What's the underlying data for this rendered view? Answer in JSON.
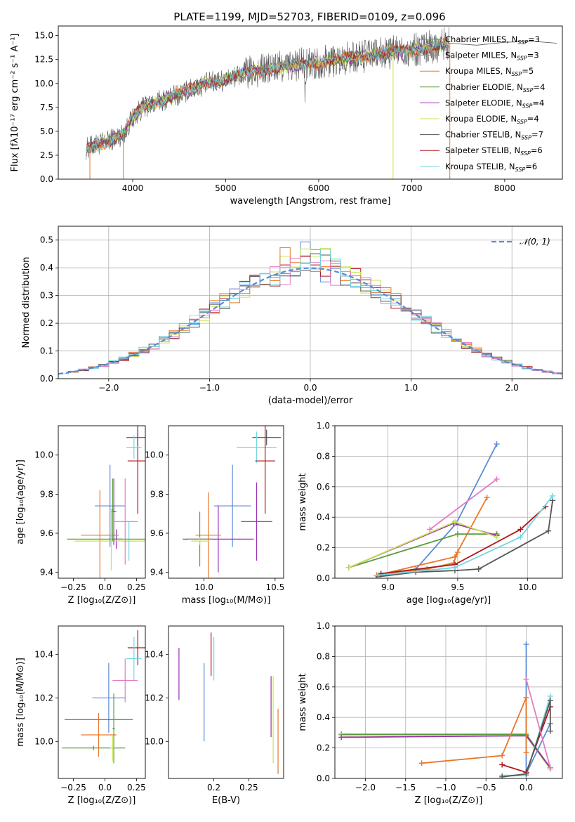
{
  "figure": {
    "title": "PLATE=1199, MJD=52703, FIBERID=0109, z=0.096"
  },
  "colors": {
    "Chabrier MILES": "#5b8bd6",
    "Salpeter MILES": "#e8792a",
    "Kroupa MILES": "#e8792a",
    "Chabrier ELODIE": "#5a9a3c",
    "Salpeter ELODIE": "#9b2fb2",
    "Kroupa ELODIE": "#c9e356",
    "Chabrier STELIB": "#555555",
    "Salpeter STELIB": "#b0161a",
    "Kroupa STELIB": "#72d6e0",
    "ssp_crosses": [
      "#b0161a",
      "#e37bc3",
      "#72d6e0",
      "#555555",
      "#9b2fb2",
      "#5b8bd6",
      "#e8792a",
      "#5a9a3c",
      "#c9e356"
    ],
    "gaussian": "#5b8bd6"
  },
  "chart_data": [
    {
      "id": "spectrum",
      "type": "line",
      "title": "PLATE=1199, MJD=52703, FIBERID=0109, z=0.096",
      "xlabel": "wavelength [Angstrom, rest frame]",
      "ylabel": "Flux [fλ10⁻¹⁷ erg cm⁻² s⁻¹ A⁻¹]",
      "xlim": [
        3200,
        8620
      ],
      "ylim": [
        0,
        16
      ],
      "xticks": [
        4000,
        5000,
        6000,
        7000,
        8000
      ],
      "yticks": [
        0.0,
        2.5,
        5.0,
        7.5,
        10.0,
        12.5,
        15.0
      ],
      "legend_position": "upper-right",
      "legend": [
        "Chabrier MILES, N_SSP=3",
        "Salpeter MILES, N_SSP=3",
        "Kroupa MILES, N_SSP=5",
        "Chabrier ELODIE, N_SSP=4",
        "Salpeter ELODIE, N_SSP=4",
        "Kroupa ELODIE, N_SSP=4",
        "Chabrier STELIB, N_SSP=7",
        "Salpeter STELIB, N_SSP=6",
        "Kroupa STELIB, N_SSP=6"
      ],
      "legend_keys": [
        "Chabrier MILES",
        "Salpeter MILES",
        "Kroupa MILES",
        "Chabrier ELODIE",
        "Salpeter ELODIE",
        "Kroupa ELODIE",
        "Chabrier STELIB",
        "Salpeter STELIB",
        "Kroupa STELIB"
      ],
      "continuum": {
        "wavelength": [
          3500,
          3600,
          3700,
          3800,
          3900,
          4000,
          4100,
          4300,
          4500,
          4800,
          5000,
          5200,
          5500,
          5800,
          6000,
          6300,
          6600,
          7000,
          7200,
          7400
        ],
        "flux": [
          3.2,
          3.6,
          3.8,
          4.3,
          4.7,
          6.4,
          7.4,
          8.2,
          8.9,
          10.0,
          10.4,
          11.0,
          11.6,
          12.0,
          12.2,
          12.6,
          13.0,
          13.5,
          13.8,
          14.2
        ]
      },
      "observed_extension": {
        "wavelength": [
          7400,
          7700,
          8000,
          8300,
          8560
        ],
        "flux": [
          14.2,
          14.0,
          14.3,
          14.4,
          14.2
        ]
      }
    },
    {
      "id": "residuals",
      "type": "histogram",
      "xlabel": "(data-model)/error",
      "ylabel": "Normed distribution",
      "xlim": [
        -2.5,
        2.5
      ],
      "ylim": [
        0,
        0.55
      ],
      "xticks": [
        -2,
        -1,
        0,
        1,
        2
      ],
      "yticks": [
        0.0,
        0.1,
        0.2,
        0.3,
        0.4,
        0.5
      ],
      "grid": true,
      "bin_width": 0.1,
      "legend": [
        "𝒩(0, 1)"
      ],
      "legend_position": "upper-right"
    },
    {
      "id": "age_vs_Z",
      "type": "errorbar",
      "xlabel": "Z [log₁₀(Z/Z⊙)]",
      "ylabel": "age  [log₁₀(age/yr)]",
      "xlim": [
        -0.37,
        0.32
      ],
      "ylim": [
        9.37,
        10.15
      ],
      "xticks": [
        -0.25,
        0.0,
        0.25
      ],
      "yticks": [
        9.4,
        9.6,
        9.8,
        10.0
      ],
      "points": [
        {
          "series": "Salpeter STELIB",
          "x": 0.26,
          "y": 9.97,
          "xerr": 0.08,
          "yerr": 0.27
        },
        {
          "series": "Chabrier STELIB",
          "x": 0.26,
          "y": 10.09,
          "xerr": 0.09,
          "yerr": 0.04
        },
        {
          "series": "Kroupa STELIB",
          "x": 0.23,
          "y": 10.04,
          "xerr": 0.06,
          "yerr": 0.06
        },
        {
          "series": "Kroupa STELIB",
          "x": 0.19,
          "y": 9.56,
          "xerr": 0.05,
          "yerr": 0.1
        },
        {
          "series": "Salpeter ELODIE",
          "x": 0.09,
          "y": 9.57,
          "xerr": 0.05,
          "yerr": 0.05
        },
        {
          "series": "Chabrier MILES",
          "x": 0.04,
          "y": 9.74,
          "xerr": 0.12,
          "yerr": 0.21
        },
        {
          "series": "Salpeter MILES",
          "x": -0.04,
          "y": 9.59,
          "xerr": 0.15,
          "yerr": 0.23
        },
        {
          "series": "Chabrier ELODIE",
          "x": 0.05,
          "y": 9.57,
          "xerr": 0.35,
          "yerr": 0.02
        },
        {
          "series": "Kroupa ELODIE",
          "x": 0.05,
          "y": 9.56,
          "xerr": 0.29,
          "yerr": 0.15
        },
        {
          "series": "Salpeter ELODIE",
          "x": 0.07,
          "y": 9.71,
          "xerr": 0.02,
          "yerr": 0.17
        },
        {
          "series": "Chabrier ELODIE",
          "x": 0.06,
          "y": 9.72,
          "xerr": 0.01,
          "yerr": 0.16
        },
        {
          "series": "Salpeter ELODIE",
          "x": 0.16,
          "y": 9.66,
          "xerr": 0.1,
          "yerr": 0.22
        }
      ]
    },
    {
      "id": "age_vs_mass",
      "type": "errorbar",
      "xlabel": "mass [log₁₀(M/M⊙)]",
      "ylabel": "",
      "xlim": [
        9.75,
        10.56
      ],
      "ylim": [
        9.37,
        10.15
      ],
      "xticks": [
        10.0,
        10.5
      ],
      "yticks": [
        9.4,
        9.6,
        9.8,
        10.0
      ],
      "points": [
        {
          "series": "Chabrier STELIB",
          "x": 10.44,
          "y": 10.09,
          "xerr": 0.1,
          "yerr": 0.04
        },
        {
          "series": "Kroupa STELIB",
          "x": 10.37,
          "y": 10.04,
          "xerr": 0.14,
          "yerr": 0.08
        },
        {
          "series": "Salpeter STELIB",
          "x": 10.43,
          "y": 9.97,
          "xerr": 0.07,
          "yerr": 0.27
        },
        {
          "series": "Salpeter ELODIE",
          "x": 10.37,
          "y": 9.66,
          "xerr": 0.11,
          "yerr": 0.2
        },
        {
          "series": "Chabrier MILES",
          "x": 10.2,
          "y": 9.74,
          "xerr": 0.13,
          "yerr": 0.21
        },
        {
          "series": "Salpeter ELODIE",
          "x": 10.1,
          "y": 9.57,
          "xerr": 0.25,
          "yerr": 0.17
        },
        {
          "series": "Salpeter MILES",
          "x": 10.03,
          "y": 9.59,
          "xerr": 0.09,
          "yerr": 0.22
        },
        {
          "series": "Chabrier ELODIE",
          "x": 9.97,
          "y": 9.57,
          "xerr": 0.08,
          "yerr": 0.14
        },
        {
          "series": "Kroupa ELODIE",
          "x": 9.97,
          "y": 9.56,
          "xerr": 0.06,
          "yerr": 0.02
        }
      ]
    },
    {
      "id": "weight_vs_age",
      "type": "line",
      "xlabel": "age  [log₁₀(age/yr)]",
      "ylabel": "mass weight",
      "xlim": [
        8.62,
        10.25
      ],
      "ylim": [
        0,
        1
      ],
      "xticks": [
        9.0,
        9.5,
        10.0
      ],
      "yticks": [
        0.0,
        0.2,
        0.4,
        0.6,
        0.8,
        1.0
      ],
      "grid": true,
      "series": [
        {
          "key": "Chabrier MILES",
          "x": [
            8.92,
            9.2,
            9.49,
            9.78
          ],
          "y": [
            0.02,
            0.06,
            0.36,
            0.88
          ]
        },
        {
          "key": "Salpeter MILES",
          "x": [
            8.92,
            9.48,
            9.71
          ],
          "y": [
            0.02,
            0.14,
            0.53
          ]
        },
        {
          "key": "Kroupa MILES",
          "x": [
            8.95,
            9.28,
            9.47,
            9.5
          ],
          "y": [
            0.03,
            0.06,
            0.1,
            0.17
          ]
        },
        {
          "key": "Chabrier ELODIE",
          "x": [
            8.72,
            9.5,
            9.78
          ],
          "y": [
            0.07,
            0.29,
            0.29
          ]
        },
        {
          "key": "Salpeter ELODIE",
          "x": [
            8.72,
            9.47,
            9.78
          ],
          "y": [
            0.07,
            0.36,
            0.28
          ]
        },
        {
          "key": "Kroupa ELODIE",
          "x": [
            8.72,
            9.48,
            9.78
          ],
          "y": [
            0.07,
            0.37,
            0.27
          ]
        },
        {
          "key": "Chabrier STELIB",
          "x": [
            8.93,
            9.2,
            9.48,
            9.65,
            10.15,
            10.18
          ],
          "y": [
            0.01,
            0.04,
            0.05,
            0.06,
            0.31,
            0.51
          ]
        },
        {
          "key": "Salpeter STELIB",
          "x": [
            8.95,
            9.48,
            9.95,
            10.13
          ],
          "y": [
            0.03,
            0.09,
            0.32,
            0.47
          ]
        },
        {
          "key": "Kroupa STELIB",
          "x": [
            8.93,
            9.48,
            9.95,
            10.18
          ],
          "y": [
            0.02,
            0.07,
            0.27,
            0.54
          ]
        },
        {
          "key": "Salpeter ELODIE",
          "x": [
            9.3,
            9.78
          ],
          "y": [
            0.32,
            0.65
          ],
          "color_override": "#e37bc3"
        }
      ]
    },
    {
      "id": "mass_vs_Z",
      "type": "errorbar",
      "xlabel": "Z [log₁₀(Z/Z⊙)]",
      "ylabel": "mass [log₁₀(M/M⊙)]",
      "xlim": [
        -0.37,
        0.32
      ],
      "ylim": [
        9.83,
        10.53
      ],
      "xticks": [
        -0.25,
        0.0,
        0.25
      ],
      "yticks": [
        10.0,
        10.2,
        10.4
      ],
      "points": [
        {
          "series": "Salpeter STELIB",
          "x": 0.26,
          "y": 10.43,
          "xerr": 0.08,
          "yerr": 0.08
        },
        {
          "series": "Kroupa STELIB",
          "x": 0.23,
          "y": 10.38,
          "xerr": 0.06,
          "yerr": 0.1
        },
        {
          "series": "Salpeter ELODIE",
          "x": 0.16,
          "y": 10.28,
          "xerr": 0.1,
          "yerr": 0.1
        },
        {
          "series": "Chabrier MILES",
          "x": 0.03,
          "y": 10.2,
          "xerr": 0.13,
          "yerr": 0.16
        },
        {
          "series": "Salpeter ELODIE",
          "x": -0.05,
          "y": 10.1,
          "xerr": 0.27,
          "yerr": 0.01
        },
        {
          "series": "Salpeter MILES",
          "x": -0.05,
          "y": 10.03,
          "xerr": 0.14,
          "yerr": 0.1
        },
        {
          "series": "Chabrier ELODIE",
          "x": -0.09,
          "y": 9.97,
          "xerr": 0.25,
          "yerr": 0.01
        },
        {
          "series": "Kroupa ELODIE",
          "x": 0.06,
          "y": 9.97,
          "xerr": 0.02,
          "yerr": 0.06
        },
        {
          "series": "Chabrier ELODIE",
          "x": 0.07,
          "y": 10.06,
          "xerr": 0.01,
          "yerr": 0.16
        }
      ]
    },
    {
      "id": "mass_vs_EBV",
      "type": "errorbar",
      "xlabel": "E(B-V)",
      "ylabel": "",
      "xlim": [
        0.135,
        0.3
      ],
      "ylim": [
        9.83,
        10.53
      ],
      "xticks": [
        0.2,
        0.25
      ],
      "yticks": [
        10.0,
        10.2,
        10.4
      ],
      "points": [
        {
          "series": "Salpeter ELODIE",
          "x": 0.15,
          "y": 10.31,
          "xerr": 0,
          "yerr": 0.12
        },
        {
          "series": "Chabrier MILES",
          "x": 0.186,
          "y": 10.18,
          "xerr": 0,
          "yerr": 0.18
        },
        {
          "series": "Salpeter STELIB",
          "x": 0.196,
          "y": 10.4,
          "xerr": 0,
          "yerr": 0.1
        },
        {
          "series": "Kroupa STELIB",
          "x": 0.2,
          "y": 10.38,
          "xerr": 0,
          "yerr": 0.1
        },
        {
          "series": "Salpeter ELODIE",
          "x": 0.282,
          "y": 10.16,
          "xerr": 0,
          "yerr": 0.14
        },
        {
          "series": "Kroupa ELODIE",
          "x": 0.285,
          "y": 10.1,
          "xerr": 0,
          "yerr": 0.2
        },
        {
          "series": "Salpeter MILES",
          "x": 0.292,
          "y": 10.0,
          "xerr": 0,
          "yerr": 0.15
        }
      ]
    },
    {
      "id": "weight_vs_Z",
      "type": "line",
      "xlabel": "Z [log₁₀(Z/Z⊙)]",
      "ylabel": "mass weight",
      "xlim": [
        -2.38,
        0.45
      ],
      "ylim": [
        0,
        1
      ],
      "xticks": [
        -2.0,
        -1.5,
        -1.0,
        -0.5,
        0.0
      ],
      "yticks": [
        0.0,
        0.2,
        0.4,
        0.6,
        0.8,
        1.0
      ],
      "grid": true,
      "series": [
        {
          "key": "Chabrier ELODIE",
          "x": [
            -2.3,
            0.0,
            0.3
          ],
          "y": [
            0.29,
            0.29,
            0.07
          ]
        },
        {
          "key": "Kroupa ELODIE",
          "x": [
            -2.3,
            0.0,
            0.3
          ],
          "y": [
            0.28,
            0.28,
            0.06
          ]
        },
        {
          "key": "Salpeter ELODIE",
          "x": [
            -2.3,
            0.0,
            0.3
          ],
          "y": [
            0.27,
            0.28,
            0.07
          ]
        },
        {
          "key": "Chabrier MILES",
          "x": [
            0.0,
            0.0,
            0.3
          ],
          "y": [
            0.88,
            0.03,
            0.36
          ]
        },
        {
          "key": "Kroupa MILES",
          "x": [
            -1.3,
            -0.3,
            0.0,
            0.0
          ],
          "y": [
            0.1,
            0.15,
            0.53,
            0.17
          ]
        },
        {
          "key": "Salpeter STELIB",
          "x": [
            -0.3,
            0.0,
            0.3
          ],
          "y": [
            0.09,
            0.04,
            0.47
          ]
        },
        {
          "key": "Kroupa STELIB",
          "x": [
            -0.3,
            0.0,
            0.3
          ],
          "y": [
            0.02,
            0.02,
            0.54
          ]
        },
        {
          "key": "Chabrier STELIB",
          "x": [
            -0.3,
            0.0,
            0.3,
            0.3
          ],
          "y": [
            0.01,
            0.03,
            0.51,
            0.31
          ]
        },
        {
          "key": "Salpeter ELODIE",
          "x": [
            0.0,
            0.3
          ],
          "y": [
            0.65,
            0.07
          ],
          "color_override": "#e37bc3"
        }
      ]
    }
  ]
}
